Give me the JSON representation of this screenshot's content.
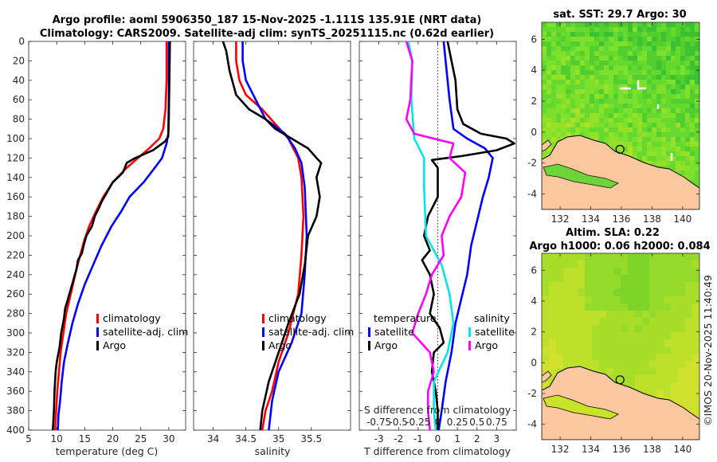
{
  "chart_data": [
    {
      "type": "line",
      "panel": "temperature-profile",
      "title": "Argo profile: aoml 5906350_187 15-Nov-2025 -1.111S 135.91E (NRT data)",
      "subtitle": "Climatology: CARS2009. Satellite-adj clim: synTS_20251115.nc (0.62d earlier)",
      "xlabel": "temperature (deg C)",
      "ylabel": "",
      "xlim": [
        5,
        33
      ],
      "ylim": [
        400,
        0
      ],
      "xticks": [
        "5",
        "10",
        "15",
        "20",
        "25",
        "30"
      ],
      "yticks": [
        "0",
        "20",
        "40",
        "60",
        "80",
        "100",
        "120",
        "140",
        "160",
        "180",
        "200",
        "220",
        "240",
        "260",
        "280",
        "300",
        "320",
        "340",
        "360",
        "380",
        "400"
      ],
      "legend": [
        "climatology",
        "satellite-adj. clim",
        "Argo"
      ],
      "series": [
        {
          "name": "climatology",
          "color": "#ff0000",
          "points": [
            [
              29.6,
              0
            ],
            [
              29.6,
              40
            ],
            [
              29.4,
              70
            ],
            [
              29.0,
              90
            ],
            [
              28.3,
              100
            ],
            [
              26.5,
              110
            ],
            [
              24.5,
              120
            ],
            [
              22.5,
              130
            ],
            [
              20.0,
              145
            ],
            [
              18.3,
              160
            ],
            [
              17.0,
              175
            ],
            [
              15.8,
              190
            ],
            [
              14.9,
              205
            ],
            [
              14.2,
              220
            ],
            [
              13.5,
              235
            ],
            [
              12.9,
              250
            ],
            [
              12.3,
              265
            ],
            [
              11.7,
              280
            ],
            [
              11.2,
              300
            ],
            [
              10.7,
              320
            ],
            [
              10.4,
              340
            ],
            [
              10.1,
              360
            ],
            [
              9.9,
              380
            ],
            [
              9.7,
              400
            ]
          ]
        },
        {
          "name": "satellite-adj. clim",
          "color": "#0000ff",
          "points": [
            [
              30.0,
              0
            ],
            [
              30.0,
              60
            ],
            [
              29.9,
              95
            ],
            [
              29.6,
              105
            ],
            [
              28.8,
              120
            ],
            [
              27.5,
              130
            ],
            [
              25.5,
              145
            ],
            [
              23.0,
              160
            ],
            [
              21.5,
              175
            ],
            [
              19.8,
              190
            ],
            [
              18.0,
              210
            ],
            [
              16.5,
              230
            ],
            [
              15.0,
              250
            ],
            [
              13.8,
              270
            ],
            [
              12.8,
              290
            ],
            [
              12.0,
              310
            ],
            [
              11.3,
              330
            ],
            [
              10.9,
              350
            ],
            [
              10.6,
              370
            ],
            [
              10.3,
              385
            ],
            [
              10.2,
              400
            ]
          ]
        },
        {
          "name": "Argo",
          "color": "#000000",
          "points": [
            [
              30.2,
              0
            ],
            [
              30.1,
              40
            ],
            [
              30.0,
              80
            ],
            [
              29.9,
              98
            ],
            [
              29.3,
              103
            ],
            [
              27.2,
              112
            ],
            [
              24.0,
              120
            ],
            [
              22.5,
              125
            ],
            [
              21.8,
              135
            ],
            [
              20.0,
              145
            ],
            [
              19.0,
              155
            ],
            [
              18.0,
              165
            ],
            [
              17.5,
              172
            ],
            [
              16.8,
              180
            ],
            [
              16.3,
              190
            ],
            [
              15.3,
              200
            ],
            [
              14.8,
              210
            ],
            [
              14.5,
              218
            ],
            [
              13.8,
              225
            ],
            [
              13.5,
              235
            ],
            [
              13.0,
              245
            ],
            [
              12.5,
              255
            ],
            [
              12.0,
              265
            ],
            [
              11.5,
              275
            ],
            [
              11.3,
              285
            ],
            [
              10.8,
              300
            ],
            [
              10.5,
              315
            ],
            [
              10.0,
              330
            ],
            [
              9.8,
              340
            ],
            [
              9.6,
              360
            ],
            [
              9.5,
              380
            ],
            [
              9.3,
              400
            ]
          ]
        }
      ]
    },
    {
      "type": "line",
      "panel": "salinity-profile",
      "xlabel": "salinity",
      "xlim": [
        33.7,
        36.1
      ],
      "ylim": [
        400,
        0
      ],
      "xticks": [
        "34",
        "34.5",
        "35",
        "35.5"
      ],
      "legend": [
        "climatology",
        "satellite-adj. clim",
        "Argo"
      ],
      "series": [
        {
          "name": "climatology",
          "color": "#ff0000",
          "points": [
            [
              34.35,
              0
            ],
            [
              34.35,
              20
            ],
            [
              34.4,
              40
            ],
            [
              34.5,
              55
            ],
            [
              34.75,
              70
            ],
            [
              34.95,
              85
            ],
            [
              35.15,
              100
            ],
            [
              35.3,
              120
            ],
            [
              35.35,
              140
            ],
            [
              35.38,
              180
            ],
            [
              35.35,
              220
            ],
            [
              35.3,
              260
            ],
            [
              35.15,
              300
            ],
            [
              35.0,
              330
            ],
            [
              34.9,
              360
            ],
            [
              34.8,
              380
            ],
            [
              34.75,
              400
            ]
          ]
        },
        {
          "name": "satellite-adj. clim",
          "color": "#0000ff",
          "points": [
            [
              34.45,
              0
            ],
            [
              34.45,
              20
            ],
            [
              34.5,
              40
            ],
            [
              34.65,
              60
            ],
            [
              34.8,
              80
            ],
            [
              35.1,
              95
            ],
            [
              35.25,
              110
            ],
            [
              35.35,
              125
            ],
            [
              35.4,
              150
            ],
            [
              35.43,
              200
            ],
            [
              35.4,
              240
            ],
            [
              35.35,
              280
            ],
            [
              35.2,
              310
            ],
            [
              35.0,
              340
            ],
            [
              34.9,
              370
            ],
            [
              34.85,
              400
            ]
          ]
        },
        {
          "name": "Argo",
          "color": "#000000",
          "points": [
            [
              34.15,
              0
            ],
            [
              34.2,
              10
            ],
            [
              34.25,
              30
            ],
            [
              34.35,
              55
            ],
            [
              34.55,
              70
            ],
            [
              34.8,
              80
            ],
            [
              34.95,
              90
            ],
            [
              35.2,
              100
            ],
            [
              35.45,
              110
            ],
            [
              35.58,
              120
            ],
            [
              35.65,
              125
            ],
            [
              35.58,
              140
            ],
            [
              35.63,
              160
            ],
            [
              35.58,
              180
            ],
            [
              35.45,
              200
            ],
            [
              35.4,
              230
            ],
            [
              35.32,
              260
            ],
            [
              35.15,
              290
            ],
            [
              35.0,
              320
            ],
            [
              34.85,
              350
            ],
            [
              34.75,
              380
            ],
            [
              34.72,
              400
            ]
          ]
        }
      ]
    },
    {
      "type": "line",
      "panel": "difference-profile",
      "xlabel": "T difference from climatology",
      "top_axis_label": "S difference from climatology",
      "xlim": [
        -4,
        4
      ],
      "ylim": [
        400,
        0
      ],
      "xticks": [
        "-3",
        "-2",
        "-1",
        "0",
        "1",
        "2",
        "3"
      ],
      "top_ticks": [
        "-0.75",
        "-0.5",
        "-0.25",
        "0",
        "0.25",
        "0.5",
        "0.75"
      ],
      "legend_temperature_heading": "temperature",
      "legend_salinity_heading": "salinity",
      "legend_temperature": [
        "satellite",
        "Argo"
      ],
      "legend_salinity": [
        "satellite",
        "Argo"
      ],
      "series": [
        {
          "name": "temperature satellite",
          "color": "#0000ff",
          "points": [
            [
              0.3,
              0
            ],
            [
              0.6,
              60
            ],
            [
              0.8,
              90
            ],
            [
              1.5,
              100
            ],
            [
              2.4,
              110
            ],
            [
              2.8,
              120
            ],
            [
              2.6,
              140
            ],
            [
              2.3,
              160
            ],
            [
              2.0,
              185
            ],
            [
              1.7,
              210
            ],
            [
              1.5,
              240
            ],
            [
              1.2,
              265
            ],
            [
              0.9,
              290
            ],
            [
              0.7,
              320
            ],
            [
              0.4,
              350
            ],
            [
              0.2,
              380
            ],
            [
              0.05,
              400
            ]
          ]
        },
        {
          "name": "temperature Argo",
          "color": "#000000",
          "points": [
            [
              0.5,
              0
            ],
            [
              0.7,
              20
            ],
            [
              0.9,
              40
            ],
            [
              1.0,
              70
            ],
            [
              1.3,
              85
            ],
            [
              2.2,
              95
            ],
            [
              3.5,
              100
            ],
            [
              3.9,
              105
            ],
            [
              3.0,
              112
            ],
            [
              1.2,
              118
            ],
            [
              -0.3,
              122
            ],
            [
              0.0,
              130
            ],
            [
              0.0,
              160
            ],
            [
              -0.5,
              180
            ],
            [
              -0.7,
              200
            ],
            [
              -0.4,
              215
            ],
            [
              -0.8,
              225
            ],
            [
              -0.4,
              240
            ],
            [
              -0.2,
              260
            ],
            [
              -0.4,
              280
            ],
            [
              0.1,
              295
            ],
            [
              0.3,
              310
            ],
            [
              -0.2,
              320
            ],
            [
              -0.3,
              340
            ],
            [
              -0.1,
              360
            ],
            [
              0.0,
              380
            ],
            [
              0.0,
              400
            ]
          ]
        },
        {
          "name": "salinity satellite",
          "color": "#00e5e5",
          "points": [
            [
              -1.5,
              0
            ],
            [
              -1.3,
              20
            ],
            [
              -1.35,
              60
            ],
            [
              -1.2,
              100
            ],
            [
              -0.7,
              120
            ],
            [
              -0.7,
              150
            ],
            [
              -0.6,
              200
            ],
            [
              0.2,
              230
            ],
            [
              0.6,
              260
            ],
            [
              0.8,
              290
            ],
            [
              0.5,
              320
            ],
            [
              -0.2,
              350
            ],
            [
              -0.2,
              380
            ],
            [
              -0.1,
              400
            ]
          ]
        },
        {
          "name": "salinity Argo",
          "color": "#ff00ff",
          "points": [
            [
              -1.6,
              0
            ],
            [
              -1.3,
              20
            ],
            [
              -1.4,
              60
            ],
            [
              -1.6,
              80
            ],
            [
              -1.2,
              95
            ],
            [
              0.8,
              105
            ],
            [
              0.6,
              120
            ],
            [
              1.4,
              135
            ],
            [
              1.2,
              160
            ],
            [
              0.6,
              180
            ],
            [
              0.2,
              200
            ],
            [
              0.3,
              220
            ],
            [
              -0.3,
              240
            ],
            [
              -0.6,
              260
            ],
            [
              -1.0,
              280
            ],
            [
              -1.3,
              300
            ],
            [
              -0.4,
              320
            ],
            [
              -0.2,
              340
            ],
            [
              -0.5,
              360
            ],
            [
              -0.5,
              380
            ],
            [
              -0.4,
              400
            ]
          ]
        }
      ]
    },
    {
      "type": "heatmap",
      "panel": "sst-map",
      "title": "sat. SST: 29.7  Argo: 30",
      "xlim": [
        130.8,
        141.1
      ],
      "ylim": [
        -5,
        7.1
      ],
      "xticks": [
        "132",
        "134",
        "136",
        "138",
        "140"
      ],
      "yticks": [
        "-4",
        "-2",
        "0",
        "2",
        "4",
        "6"
      ],
      "argo_position": [
        135.91,
        -1.111
      ],
      "argo_marker_sst": 30
    },
    {
      "type": "heatmap",
      "panel": "sla-map",
      "title": "Altim. SLA: 0.22",
      "subtitle": "Argo h1000: 0.06 h2000: 0.084",
      "xlim": [
        130.8,
        141.1
      ],
      "ylim": [
        -5,
        7.1
      ],
      "xticks": [
        "132",
        "134",
        "136",
        "138",
        "140"
      ],
      "yticks": [
        "-4",
        "-2",
        "0",
        "2",
        "4",
        "6"
      ],
      "argo_position": [
        135.91,
        -1.111
      ],
      "argo_marker_sla": 0.22
    }
  ],
  "credit": "©IMOS 20-Nov-2025 11:40:49",
  "colors": {
    "climatology": "#ff0000",
    "satellite": "#0000ff",
    "argo": "#000000",
    "salinity_satellite": "#00e5e5",
    "salinity_argo": "#ff00ff",
    "land": "#fac79f",
    "sst_field": "#5ed630",
    "sla_field": "#a8de2a"
  }
}
